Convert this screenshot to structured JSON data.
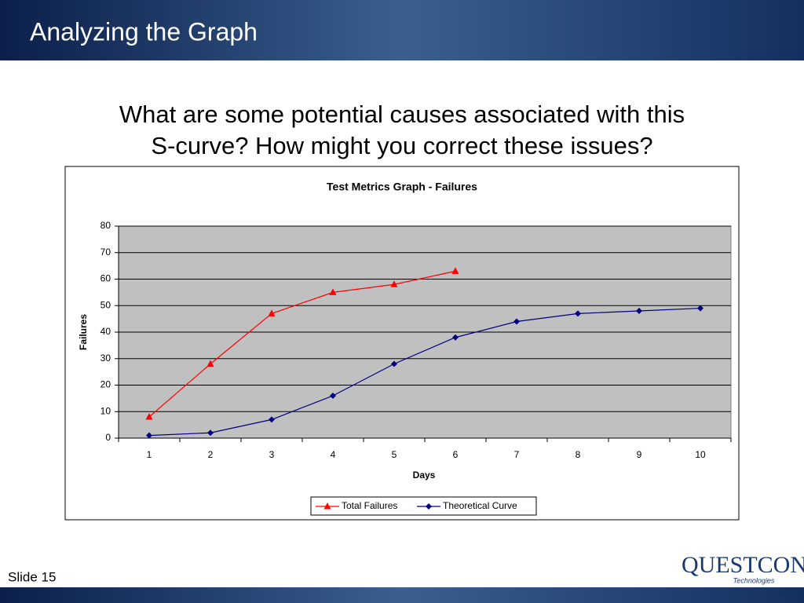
{
  "slide": {
    "title": "Analyzing the Graph",
    "question": [
      "What are some potential causes associated with this",
      "S-curve?  How might you correct these issues?"
    ],
    "footer": "Slide 15",
    "logo": "QUESTCON",
    "logo_sub": "Technologies"
  },
  "chart_data": {
    "type": "line",
    "title": "Test Metrics Graph - Failures",
    "x_label": "Days",
    "y_label": "Failures",
    "categories": [
      "1",
      "2",
      "3",
      "4",
      "5",
      "6",
      "7",
      "8",
      "9",
      "10"
    ],
    "series": [
      {
        "name": "Total Failures",
        "color": "#ff0000",
        "marker": "triangle",
        "values": [
          8,
          28,
          47,
          55,
          58,
          63,
          null,
          null,
          null,
          null
        ]
      },
      {
        "name": "Theoretical Curve",
        "color": "#000080",
        "marker": "diamond",
        "values": [
          1,
          2,
          7,
          16,
          28,
          38,
          44,
          47,
          48,
          49
        ]
      }
    ],
    "ylim": [
      0,
      80
    ],
    "yticks": [
      0,
      10,
      20,
      30,
      40,
      50,
      60,
      70,
      80
    ],
    "grid": true,
    "legend": "bottom"
  }
}
